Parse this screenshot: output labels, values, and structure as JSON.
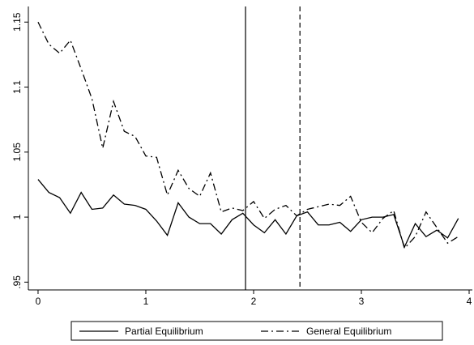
{
  "chart_data": {
    "type": "line",
    "x": [
      0,
      0.1,
      0.2,
      0.3,
      0.4,
      0.5,
      0.6,
      0.7,
      0.8,
      0.9,
      1,
      1.1,
      1.2,
      1.3,
      1.4,
      1.5,
      1.6,
      1.7,
      1.8,
      1.9,
      2,
      2.1,
      2.2,
      2.3,
      2.4,
      2.5,
      2.6,
      2.7,
      2.8,
      2.9,
      3,
      3.1,
      3.2,
      3.3,
      3.4,
      3.5,
      3.6,
      3.7,
      3.8,
      3.9
    ],
    "series": [
      {
        "name": "Partial Equilibrium",
        "color": "#000000",
        "dash": "solid",
        "values": [
          1.029,
          1.019,
          1.015,
          1.003,
          1.019,
          1.006,
          1.007,
          1.017,
          1.01,
          1.009,
          1.006,
          0.997,
          0.986,
          1.011,
          1.0,
          0.995,
          0.995,
          0.987,
          0.998,
          1.003,
          0.994,
          0.988,
          0.998,
          0.987,
          1.001,
          1.004,
          0.994,
          0.994,
          0.996,
          0.989,
          0.998,
          1.0,
          1.0,
          1.002,
          0.977,
          0.995,
          0.985,
          0.99,
          0.984,
          0.999
        ]
      },
      {
        "name": "General Equilibrium",
        "color": "#000000",
        "dash": "dashdot",
        "values": [
          1.15,
          1.133,
          1.126,
          1.136,
          1.114,
          1.091,
          1.053,
          1.089,
          1.066,
          1.062,
          1.047,
          1.046,
          1.017,
          1.036,
          1.022,
          1.016,
          1.034,
          1.004,
          1.007,
          1.005,
          1.012,
          0.999,
          1.006,
          1.009,
          1.001,
          1.006,
          1.008,
          1.01,
          1.009,
          1.016,
          0.996,
          0.988,
          0.999,
          1.005,
          0.976,
          0.985,
          1.004,
          0.992,
          0.98,
          0.985
        ]
      }
    ],
    "xlim": [
      -0.09,
      4.03
    ],
    "ylim": [
      0.944,
      1.162
    ],
    "xticks": [
      0,
      1,
      2,
      3,
      4
    ],
    "yticks": [
      {
        "value": 0.95,
        "label": ".95"
      },
      1,
      1.05,
      1.1,
      1.15
    ],
    "vlines": [
      1.925,
      2.43
    ],
    "vline_styles": [
      "solid",
      "dashed"
    ],
    "grid": false,
    "legend": "bottom"
  }
}
